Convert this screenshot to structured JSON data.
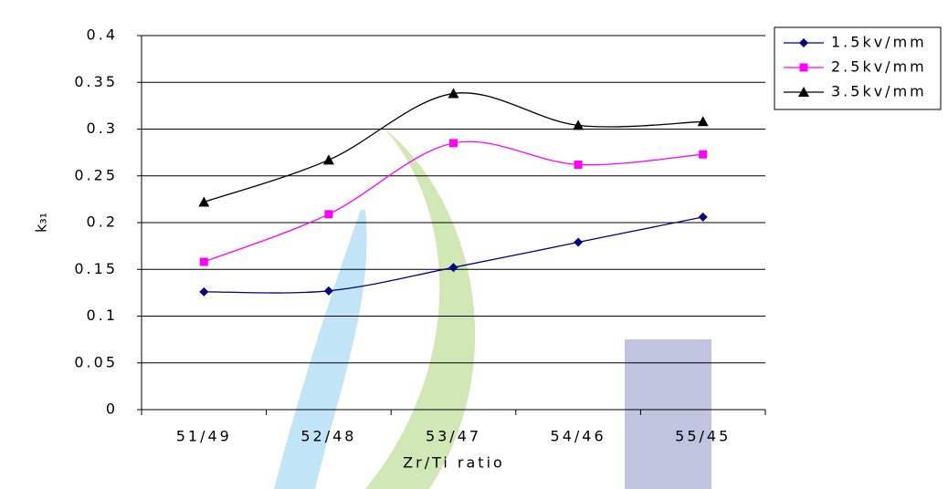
{
  "chart_data": {
    "type": "line",
    "x_label": "Zr/Ti ratio",
    "y_label": "k₃₁",
    "categories": [
      "51/49",
      "52/48",
      "53/47",
      "54/46",
      "55/45"
    ],
    "series": [
      {
        "name": "1.5kv/mm",
        "color": "#000080",
        "marker": "diamond",
        "values": [
          0.126,
          0.127,
          0.152,
          0.179,
          0.206
        ]
      },
      {
        "name": "2.5kv/mm",
        "color": "#ff00ff",
        "marker": "square",
        "values": [
          0.158,
          0.209,
          0.285,
          0.262,
          0.273
        ]
      },
      {
        "name": "3.5kv/mm",
        "color": "#000000",
        "marker": "triangle",
        "values": [
          0.222,
          0.267,
          0.338,
          0.304,
          0.308
        ]
      }
    ],
    "ylim": [
      0,
      0.4
    ],
    "yticks": [
      0,
      0.05,
      0.1,
      0.15,
      0.2,
      0.25,
      0.3,
      0.35,
      0.4
    ],
    "grid": true,
    "legend": "top-right"
  }
}
